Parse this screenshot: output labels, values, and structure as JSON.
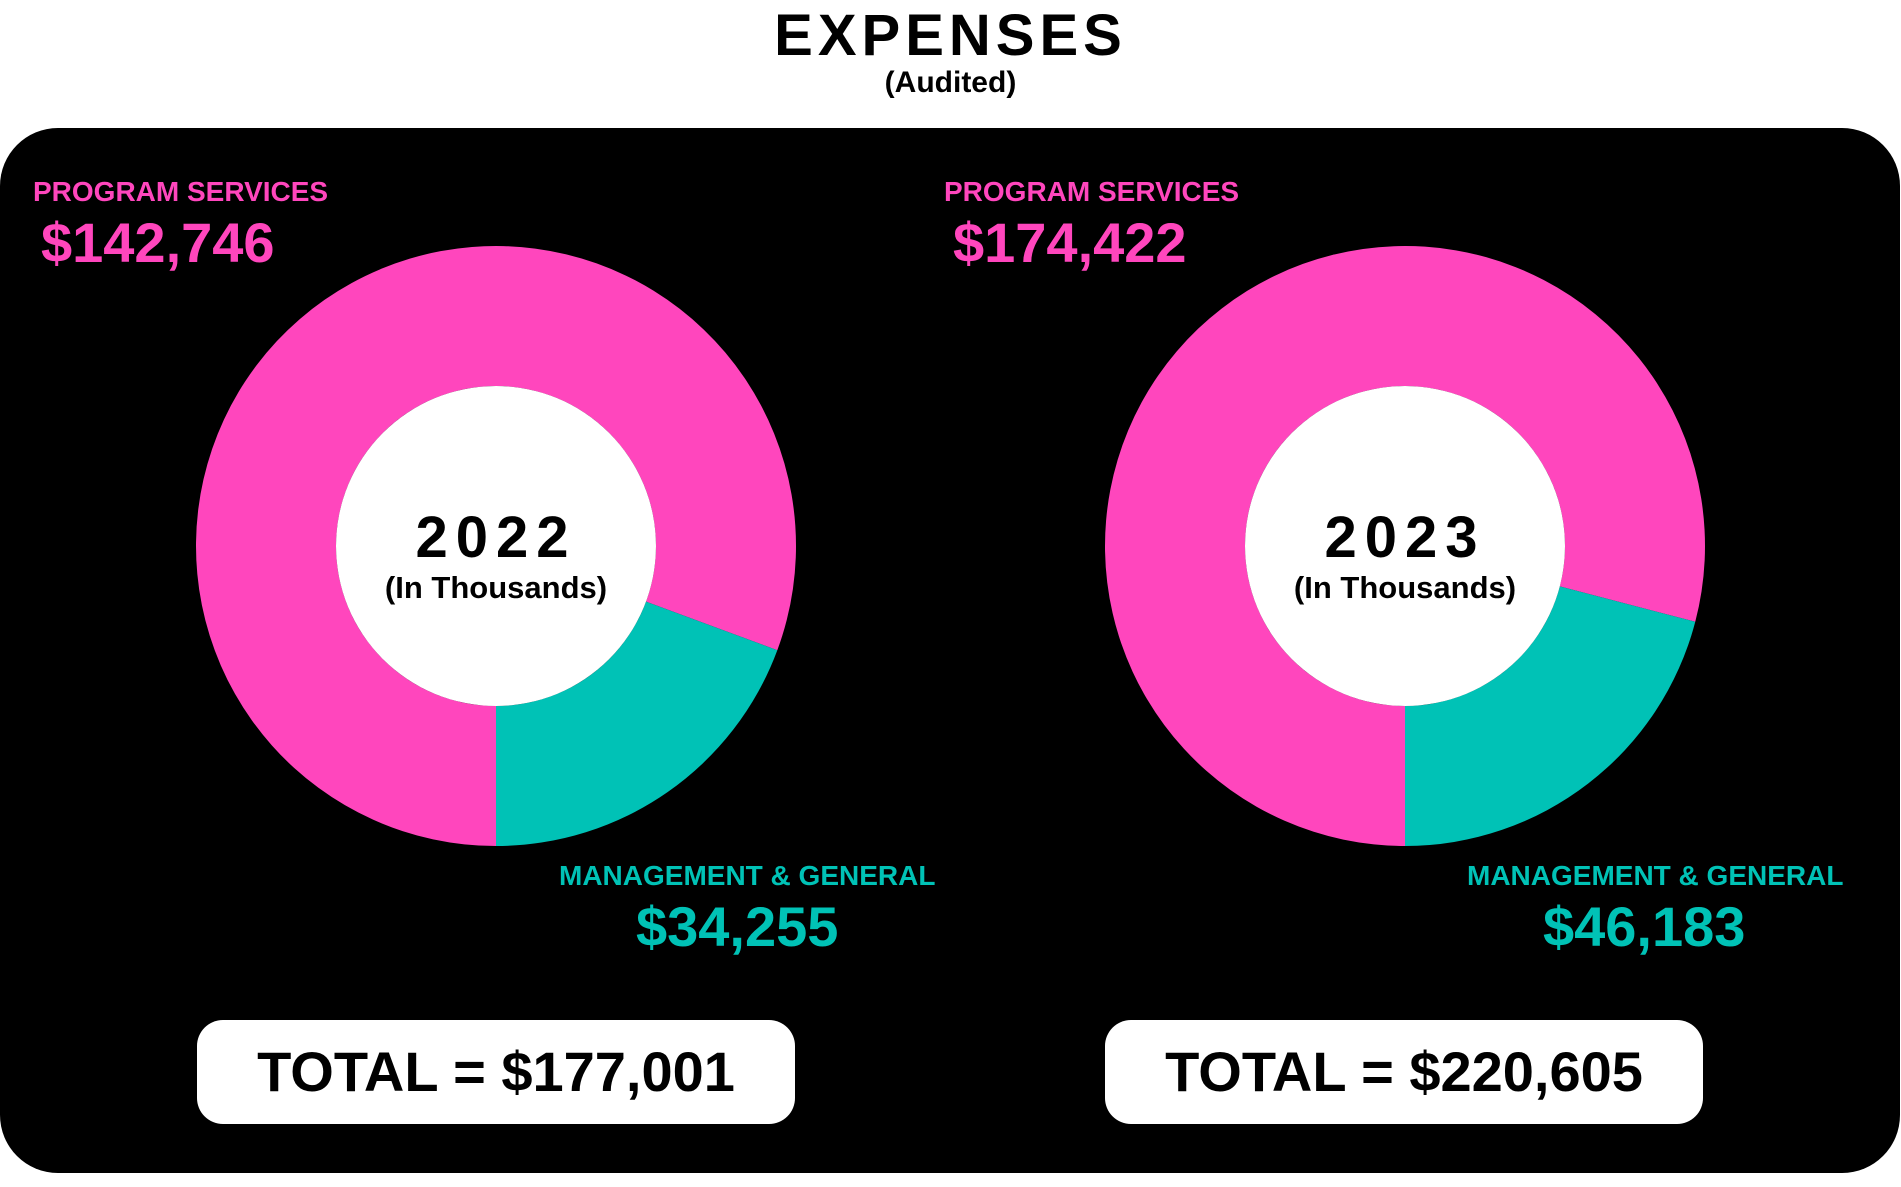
{
  "header": {
    "title": "EXPENSES",
    "subtitle": "(Audited)"
  },
  "colors": {
    "program_services": "#ff46bd",
    "management_general": "#00c2b6",
    "panel": "#000000"
  },
  "chart_data": [
    {
      "type": "pie",
      "center_label": "2022",
      "center_sublabel": "(In Thousands)",
      "slices": [
        {
          "label": "PROGRAM SERVICES",
          "value": 142746,
          "value_label": "$142,746",
          "color": "#ff46bd"
        },
        {
          "label": "MANAGEMENT & GENERAL",
          "value": 34255,
          "value_label": "$34,255",
          "color": "#00c2b6"
        }
      ],
      "total_label": "TOTAL = $177,001"
    },
    {
      "type": "pie",
      "center_label": "2023",
      "center_sublabel": "(In Thousands)",
      "slices": [
        {
          "label": "PROGRAM SERVICES",
          "value": 174422,
          "value_label": "$174,422",
          "color": "#ff46bd"
        },
        {
          "label": "MANAGEMENT & GENERAL",
          "value": 46183,
          "value_label": "$46,183",
          "color": "#00c2b6"
        }
      ],
      "total_label": "TOTAL = $220,605"
    }
  ]
}
